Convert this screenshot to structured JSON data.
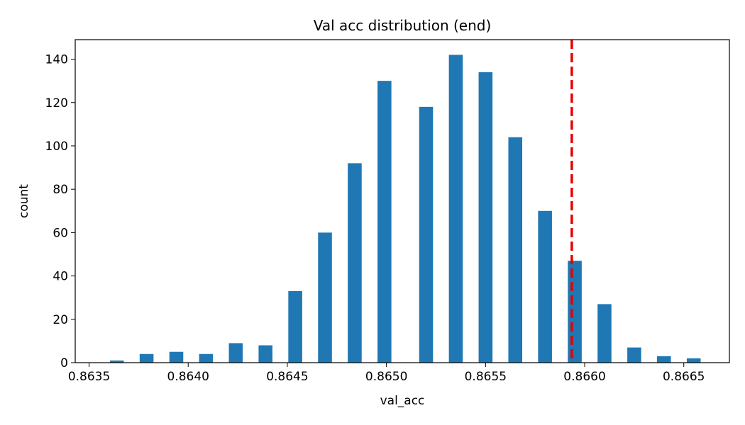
{
  "chart_data": {
    "type": "bar",
    "title": "Val acc distribution (end)",
    "xlabel": "val_acc",
    "ylabel": "count",
    "xlim": [
      0.86343,
      0.86673
    ],
    "ylim": [
      0,
      149
    ],
    "xticks": [
      0.8635,
      0.864,
      0.8645,
      0.865,
      0.8655,
      0.866,
      0.8665
    ],
    "xtick_labels": [
      "0.8635",
      "0.8640",
      "0.8645",
      "0.8650",
      "0.8655",
      "0.8660",
      "0.8665"
    ],
    "yticks": [
      0,
      20,
      40,
      60,
      80,
      100,
      120,
      140
    ],
    "ytick_labels": [
      "0",
      "20",
      "40",
      "60",
      "80",
      "100",
      "120",
      "140"
    ],
    "bar_width": 7e-05,
    "bars": [
      {
        "x": 0.86364,
        "value": 1
      },
      {
        "x": 0.86379,
        "value": 4
      },
      {
        "x": 0.86394,
        "value": 5
      },
      {
        "x": 0.86409,
        "value": 4
      },
      {
        "x": 0.86424,
        "value": 9
      },
      {
        "x": 0.86439,
        "value": 8
      },
      {
        "x": 0.86454,
        "value": 33
      },
      {
        "x": 0.86469,
        "value": 60
      },
      {
        "x": 0.86484,
        "value": 92
      },
      {
        "x": 0.86499,
        "value": 130
      },
      {
        "x": 0.8652,
        "value": 118
      },
      {
        "x": 0.86535,
        "value": 142
      },
      {
        "x": 0.8655,
        "value": 134
      },
      {
        "x": 0.86565,
        "value": 104
      },
      {
        "x": 0.8658,
        "value": 70
      },
      {
        "x": 0.86595,
        "value": 47
      },
      {
        "x": 0.8661,
        "value": 27
      },
      {
        "x": 0.86625,
        "value": 7
      },
      {
        "x": 0.8664,
        "value": 3
      },
      {
        "x": 0.86655,
        "value": 2
      }
    ],
    "reference_line": {
      "x": 0.865935,
      "style": "dashed"
    },
    "colors": {
      "bar": "#1f77b4",
      "reference_line": "#e60000",
      "axis": "#000000"
    },
    "grid": false
  }
}
